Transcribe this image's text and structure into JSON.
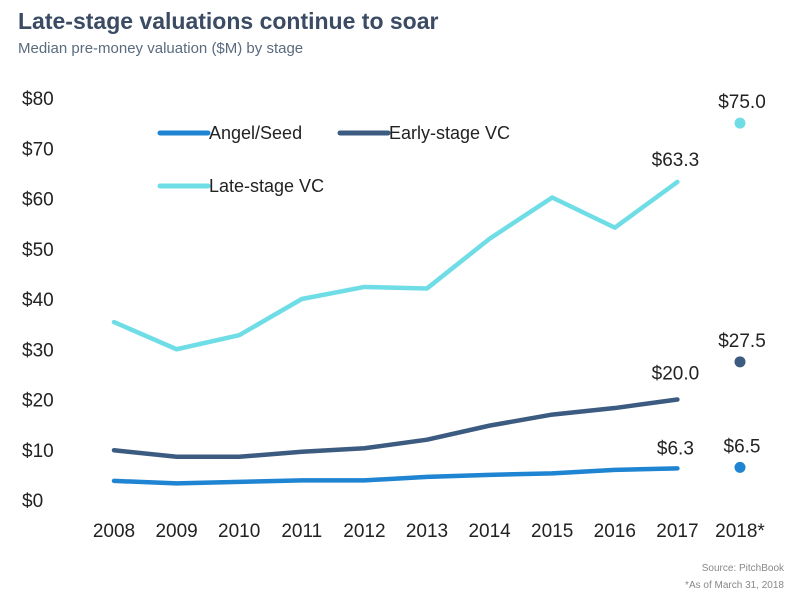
{
  "title": "Late-stage valuations continue to soar",
  "subtitle": "Median pre-money valuation ($M) by stage",
  "source": "Source: PitchBook",
  "footnote": "*As of March 31, 2018",
  "chart_data": {
    "type": "line",
    "title": "Late-stage valuations continue to soar",
    "subtitle": "Median pre-money valuation ($M) by stage",
    "categories": [
      "2008",
      "2009",
      "2010",
      "2011",
      "2012",
      "2013",
      "2014",
      "2015",
      "2016",
      "2017",
      "2018*"
    ],
    "ylim": [
      0,
      80
    ],
    "yticks": [
      0,
      10,
      20,
      30,
      40,
      50,
      60,
      70,
      80
    ],
    "ytick_labels": [
      "$0",
      "$10",
      "$20",
      "$30",
      "$40",
      "$50",
      "$60",
      "$70",
      "$80"
    ],
    "grid": false,
    "legend_position": "top-left",
    "series": [
      {
        "name": "Angel/Seed",
        "color": "#1f84d1",
        "values": [
          3.8,
          3.3,
          3.6,
          3.9,
          3.9,
          4.6,
          5.0,
          5.3,
          6.0,
          6.3,
          6.5
        ],
        "point_label": "$6.3",
        "point_label_2018": "$6.5"
      },
      {
        "name": "Early-stage VC",
        "color": "#3c5b80",
        "values": [
          9.9,
          8.6,
          8.6,
          9.6,
          10.3,
          12.0,
          14.8,
          17.0,
          18.3,
          20.0,
          27.5
        ],
        "point_label": "$20.0",
        "point_label_2018": "$27.5"
      },
      {
        "name": "Late-stage VC",
        "color": "#6fdde6",
        "values": [
          35.4,
          30.0,
          32.8,
          40.0,
          42.4,
          42.1,
          52.0,
          60.2,
          54.2,
          63.3,
          75.0
        ],
        "point_label": "$63.3",
        "point_label_2018": "$75.0"
      }
    ],
    "last_point_rendered_as": "dot"
  }
}
